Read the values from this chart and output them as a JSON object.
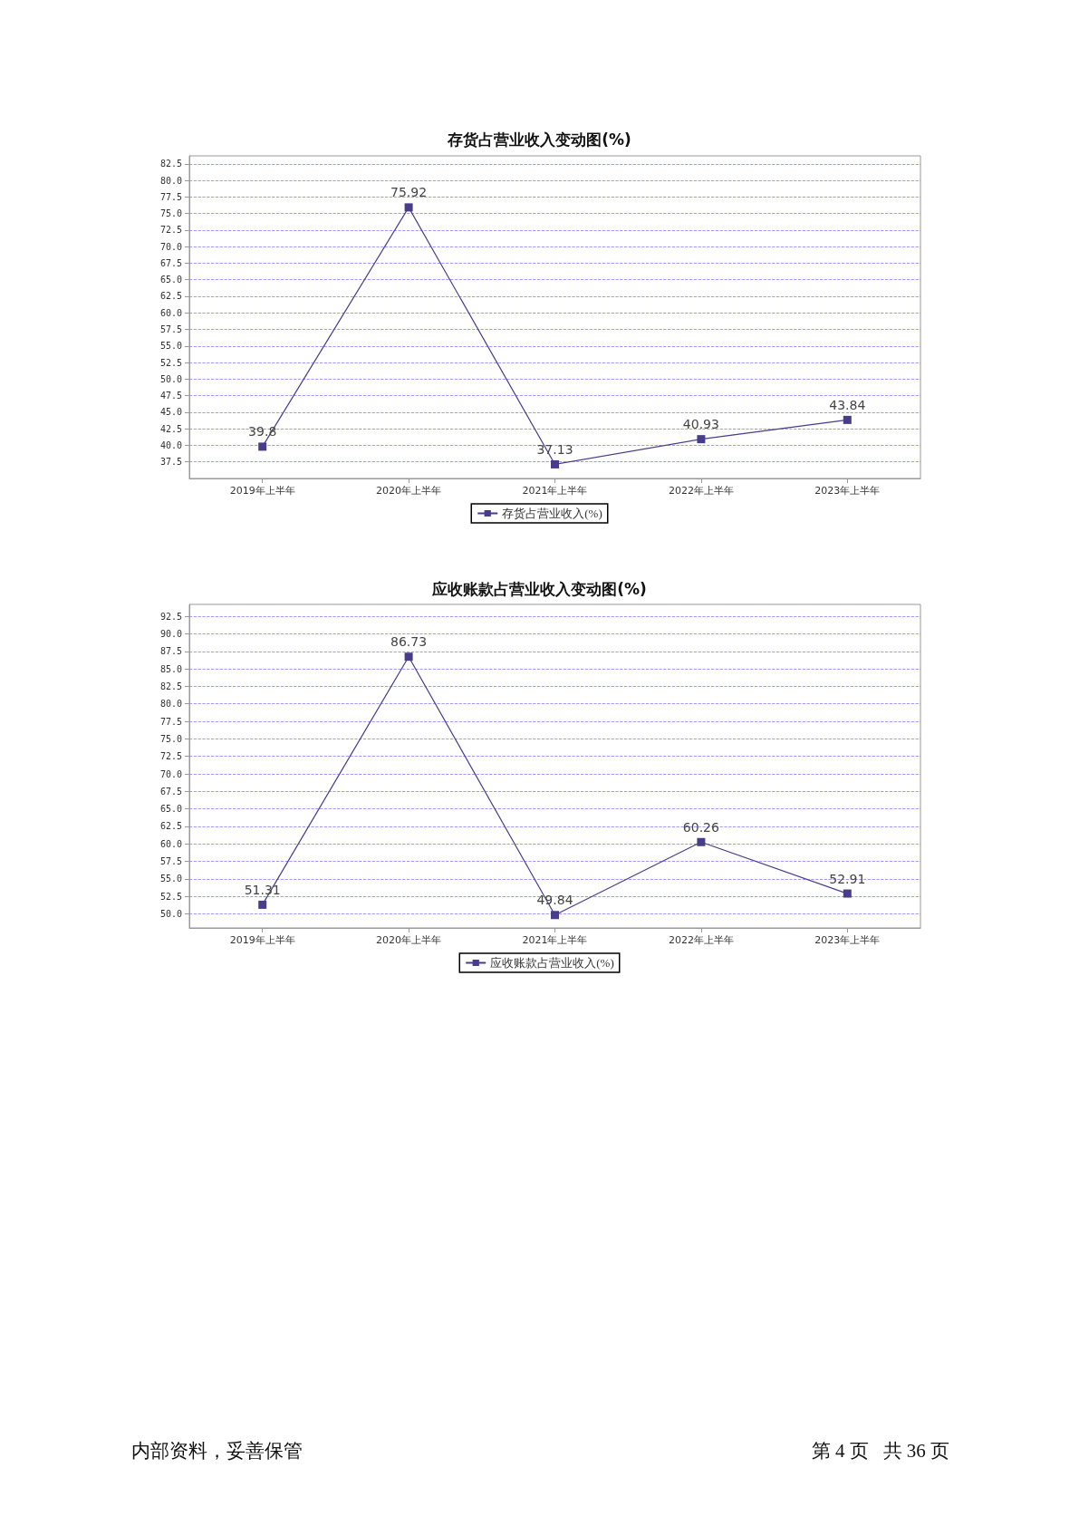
{
  "chart_data": [
    {
      "type": "line",
      "title": "存货占营业收入变动图(%)",
      "categories": [
        "2019年上半年",
        "2020年上半年",
        "2021年上半年",
        "2022年上半年",
        "2023年上半年"
      ],
      "series": [
        {
          "name": "存货占营业收入(%)",
          "color": "#483d8b",
          "values": [
            39.8,
            75.92,
            37.13,
            40.93,
            43.84
          ]
        }
      ],
      "ylim": [
        35.0,
        83.7
      ],
      "yticks": [
        37.5,
        {
          "value": 40,
          "label": "40.0"
        },
        42.5,
        {
          "value": 45,
          "label": "45.0"
        },
        47.5,
        {
          "value": 50,
          "label": "50.0"
        },
        52.5,
        {
          "value": 55,
          "label": "55.0"
        },
        57.5,
        {
          "value": 60,
          "label": "60.0"
        },
        62.5,
        {
          "value": 65,
          "label": "65.0"
        },
        67.5,
        {
          "value": 70,
          "label": "70.0"
        },
        72.5,
        {
          "value": 75,
          "label": "75.0"
        },
        77.5,
        {
          "value": 80,
          "label": "80.0"
        },
        82.5
      ],
      "grid": "y",
      "legend": "bottom",
      "marker": "square",
      "line_style": "solid",
      "data_labels": true
    },
    {
      "type": "line",
      "title": "应收账款占营业收入变动图(%)",
      "categories": [
        "2019年上半年",
        "2020年上半年",
        "2021年上半年",
        "2022年上半年",
        "2023年上半年"
      ],
      "series": [
        {
          "name": "应收账款占营业收入(%)",
          "color": "#483d8b",
          "values": [
            51.31,
            86.73,
            49.84,
            60.26,
            52.91
          ]
        }
      ],
      "ylim": [
        48.0,
        94.2
      ],
      "yticks": [
        {
          "value": 50,
          "label": "50.0"
        },
        52.5,
        {
          "value": 55,
          "label": "55.0"
        },
        57.5,
        {
          "value": 60,
          "label": "60.0"
        },
        62.5,
        {
          "value": 65,
          "label": "65.0"
        },
        67.5,
        {
          "value": 70,
          "label": "70.0"
        },
        72.5,
        {
          "value": 75,
          "label": "75.0"
        },
        77.5,
        {
          "value": 80,
          "label": "80.0"
        },
        82.5,
        {
          "value": 85,
          "label": "85.0"
        },
        87.5,
        {
          "value": 90,
          "label": "90.0"
        },
        92.5
      ],
      "grid": "y",
      "legend": "bottom",
      "marker": "square",
      "line_style": "solid",
      "data_labels": true,
      "annotations": [
        "内部资料，妥善保管",
        "第 4 页   共 36 页"
      ]
    }
  ]
}
